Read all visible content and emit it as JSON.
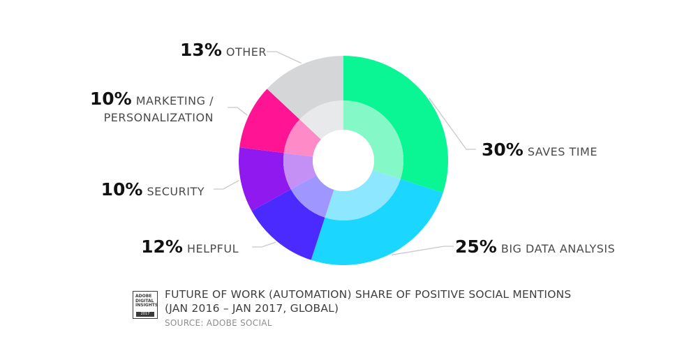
{
  "chart_data": {
    "type": "pie",
    "variant": "double-ring-donut",
    "slices": [
      {
        "pct_label": "30%",
        "label": "SAVES TIME",
        "value": 30,
        "outer_color": "#0af593",
        "inner_color": "#84f8c7"
      },
      {
        "pct_label": "25%",
        "label": "BIG DATA ANALYSIS",
        "value": 25,
        "outer_color": "#1bd6ff",
        "inner_color": "#8de8ff"
      },
      {
        "pct_label": "12%",
        "label": "HELPFUL",
        "value": 12,
        "outer_color": "#4a2aff",
        "inner_color": "#a096ff"
      },
      {
        "pct_label": "10%",
        "label": "SECURITY",
        "value": 10,
        "outer_color": "#8f19ef",
        "inner_color": "#c490f6"
      },
      {
        "pct_label": "10%",
        "label": "MARKETING /",
        "label2": "PERSONALIZATION",
        "value": 10,
        "outer_color": "#ff1493",
        "inner_color": "#ff8ac8"
      },
      {
        "pct_label": "13%",
        "label": "OTHER",
        "value": 13,
        "outer_color": "#d4d6d8",
        "inner_color": "#e8e9ea"
      }
    ]
  },
  "caption": {
    "title_line1": "FUTURE OF WORK (AUTOMATION) SHARE OF POSITIVE SOCIAL MENTIONS",
    "title_line2": "(JAN 2016 – JAN 2017, GLOBAL)",
    "source": "SOURCE: ADOBE SOCIAL"
  },
  "badge": {
    "line1": "ADOBE",
    "line2": "DIGITAL",
    "line3": "INSIGHTS",
    "year": "2017"
  }
}
